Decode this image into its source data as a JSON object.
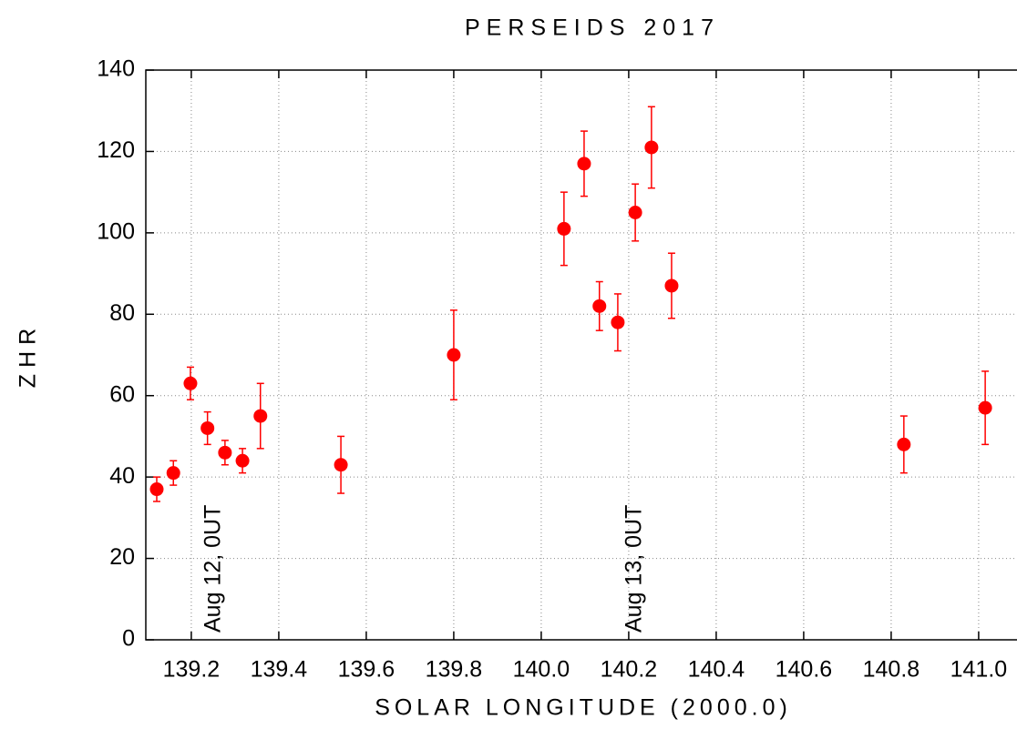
{
  "chart_data": {
    "type": "scatter",
    "title": "PERSEIDS 2017",
    "xlabel": "SOLAR LONGITUDE (2000.0)",
    "ylabel": "ZHR",
    "color": "#ff0000",
    "grid": true,
    "x": [
      139.121,
      139.159,
      139.198,
      139.237,
      139.277,
      139.317,
      139.358,
      139.542,
      139.8,
      140.052,
      140.098,
      140.133,
      140.175,
      140.215,
      140.252,
      140.298,
      140.829,
      141.015
    ],
    "values": [
      37,
      41,
      63,
      52,
      46,
      44,
      55,
      43,
      70,
      101,
      117,
      82,
      78,
      105,
      121,
      87,
      48,
      57
    ],
    "errors": [
      3,
      3,
      4,
      4,
      3,
      3,
      8,
      7,
      11,
      9,
      8,
      6,
      7,
      7,
      10,
      8,
      7,
      9
    ],
    "annotations": [
      "Aug 12, 0UT",
      "Aug 13, 0UT"
    ],
    "xlim": [
      139.096,
      141.1
    ],
    "ylim": [
      0,
      140
    ],
    "xticks": [
      139.2,
      139.4,
      139.6,
      139.8,
      {
        "value": 140.0,
        "label": "140.0"
      },
      140.2,
      140.4,
      140.6,
      140.8,
      {
        "value": 141.0,
        "label": "141.0"
      }
    ],
    "yticks": [
      0,
      20,
      40,
      60,
      80,
      100,
      120,
      140
    ]
  }
}
